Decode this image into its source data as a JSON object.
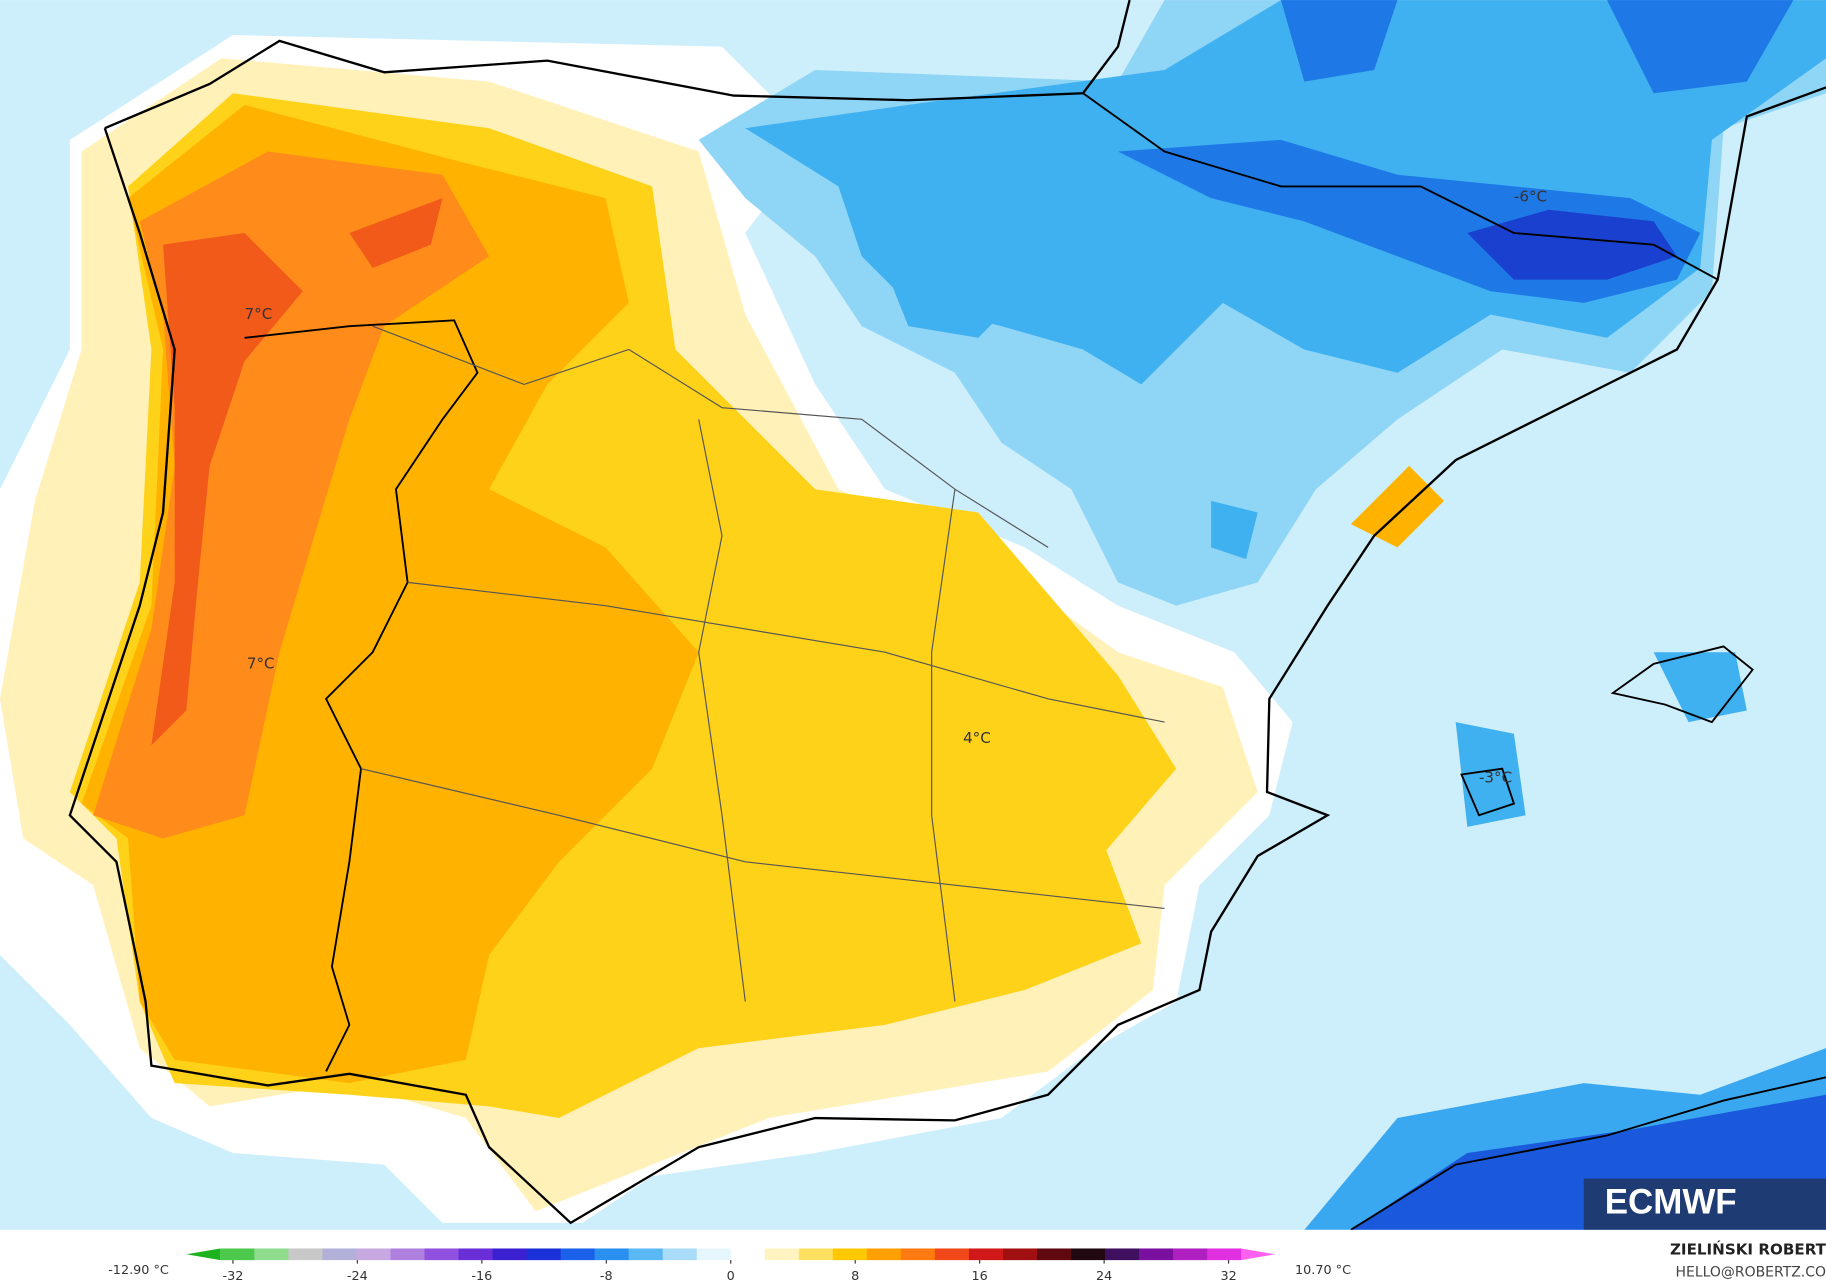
{
  "map": {
    "labels": [
      "7°C",
      "7°C",
      "4°C",
      "-6°C",
      "-3°C"
    ],
    "logo": "ECMWF"
  },
  "colorbar": {
    "min_label": "-12.90 °C",
    "max_label": "10.70 °C",
    "ticks": [
      -32,
      -24,
      -16,
      -8,
      0,
      8,
      16,
      24,
      32
    ],
    "colors": [
      "#1db31d",
      "#4cc94c",
      "#8fdc8f",
      "#c8c8c8",
      "#b0b0d8",
      "#c8a8e0",
      "#b080e0",
      "#9050e0",
      "#6a2ed8",
      "#3a20d0",
      "#1a30d8",
      "#1a60e8",
      "#2a90f0",
      "#5ab8f5",
      "#a8dcf8",
      "#e6f6fd",
      "#ffffff",
      "#fff4c0",
      "#ffe060",
      "#ffc800",
      "#ffa000",
      "#ff7a10",
      "#f04818",
      "#d01818",
      "#a01010",
      "#600810",
      "#200810",
      "#401060",
      "#7a10a0",
      "#b020c0",
      "#e030e0",
      "#ff60f0"
    ]
  },
  "credits": {
    "author": "ZIELIŃSKI ROBERT",
    "email": "HELLO@ROBERTZ.CO"
  }
}
